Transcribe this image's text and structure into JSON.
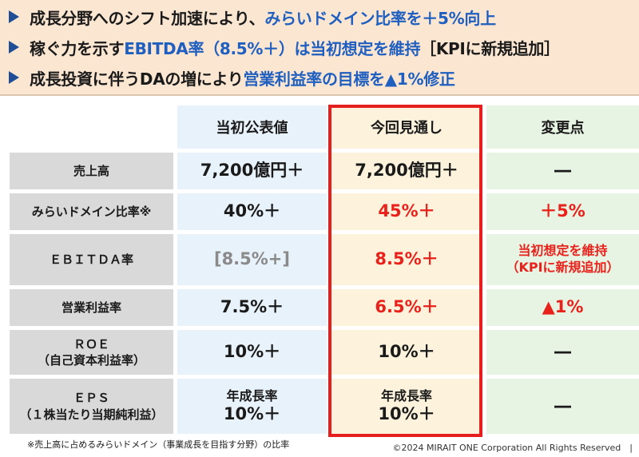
{
  "banner": {
    "lines": [
      {
        "black": "成長分野へのシフト加速により、",
        "blue": "みらいドメイン比率を＋5%向上",
        "tail": ""
      },
      {
        "black": "稼ぐ力を示す",
        "blue": "EBITDA率（8.5%＋）は当初想定を維持",
        "tail": "［KPIに新規追加］"
      },
      {
        "black": "成長投資に伴うDAの増により",
        "blue": "営業利益率の目標を▲1%修正",
        "tail": ""
      }
    ]
  },
  "table": {
    "headers": [
      "当初公表値",
      "今回見通し",
      "変更点"
    ],
    "rows": [
      {
        "label": "売上高",
        "label2": "",
        "initial": "7,200億円＋",
        "forecast": "7,200億円＋",
        "change": "―",
        "change2": ""
      },
      {
        "label": "みらいドメイン比率※",
        "label2": "",
        "initial": "40%＋",
        "forecast": "45%＋",
        "change": "＋5%",
        "change2": ""
      },
      {
        "label": "ＥＢＩＴＤＡ率",
        "label2": "",
        "initial": "[8.5%+]",
        "forecast": "8.5%＋",
        "change": "当初想定を維持",
        "change2": "（KPIに新規追加）"
      },
      {
        "label": "営業利益率",
        "label2": "",
        "initial": "7.5%＋",
        "forecast": "6.5%＋",
        "change": "▲1%",
        "change2": ""
      },
      {
        "label": "ＲＯＥ",
        "label2": "（自己資本利益率）",
        "initial": "10%＋",
        "forecast": "10%＋",
        "change": "―",
        "change2": ""
      },
      {
        "label": "ＥＰＳ",
        "label2": "（１株当たり当期純利益）",
        "initial": "年成長率",
        "initial2": "10%＋",
        "forecast": "年成長率",
        "forecast2": "10%＋",
        "change": "―",
        "change2": ""
      }
    ]
  },
  "footnote": "※売上高に占めるみらいドメイン（事業成長を目指す分野）の比率",
  "copyright": "©2024 MIRAIT ONE Corporation All Rights Reserved　|",
  "colors": {
    "accent_blue": "#1f5fbf",
    "highlight_red": "#e8211b",
    "banner_bg": "#fbe6d2"
  }
}
